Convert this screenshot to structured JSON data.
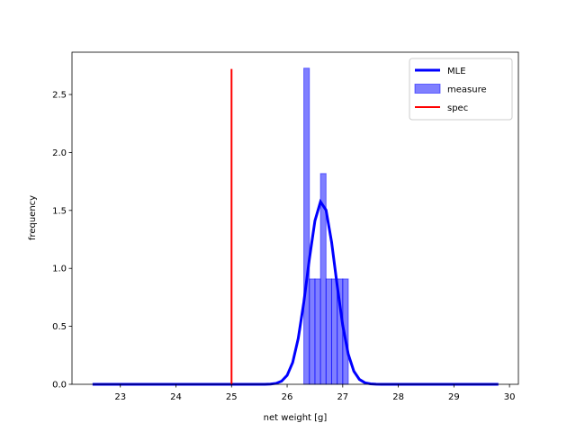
{
  "chart_data": {
    "type": "histogram",
    "xlabel": "net weight [g]",
    "ylabel": "frequency",
    "xlim": [
      22.13,
      30.16
    ],
    "ylim": [
      0,
      2.865
    ],
    "xticks": [
      23,
      24,
      25,
      26,
      27,
      28,
      29,
      30
    ],
    "yticks": [
      {
        "value": 0,
        "label": "0.0"
      },
      {
        "value": 0.5,
        "label": "0.5"
      },
      {
        "value": 1,
        "label": "1.0"
      },
      {
        "value": 1.5,
        "label": "1.5"
      },
      {
        "value": 2,
        "label": "2.0"
      },
      {
        "value": 2.5,
        "label": "2.5"
      }
    ],
    "legend": "upper right",
    "histogram": {
      "name": "measure",
      "color": "#0000ff",
      "bins": [
        26.3,
        26.4,
        26.5,
        26.6,
        26.7,
        26.8,
        26.9,
        27.0,
        27.1
      ],
      "values": [
        2.727,
        0.909,
        0.909,
        1.818,
        0.909,
        0.909,
        0.909,
        0.909
      ]
    },
    "lines": [
      {
        "name": "MLE",
        "color": "#0000ff",
        "x": [
          22.5,
          25.5,
          25.6,
          25.7,
          25.8,
          25.9,
          26.0,
          26.1,
          26.2,
          26.3,
          26.4,
          26.5,
          26.6,
          26.7,
          26.8,
          26.9,
          27.0,
          27.1,
          27.2,
          27.3,
          27.4,
          27.5,
          27.6,
          27.7,
          29.8
        ],
        "values": [
          0,
          0,
          0,
          0.002,
          0.008,
          0.027,
          0.077,
          0.189,
          0.396,
          0.708,
          1.081,
          1.411,
          1.575,
          1.503,
          1.226,
          0.854,
          0.509,
          0.259,
          0.113,
          0.042,
          0.013,
          0.004,
          0.001,
          0,
          0
        ]
      },
      {
        "name": "spec",
        "color": "#ff0000",
        "x": [
          25,
          25
        ],
        "values": [
          0,
          2.72
        ]
      }
    ]
  }
}
